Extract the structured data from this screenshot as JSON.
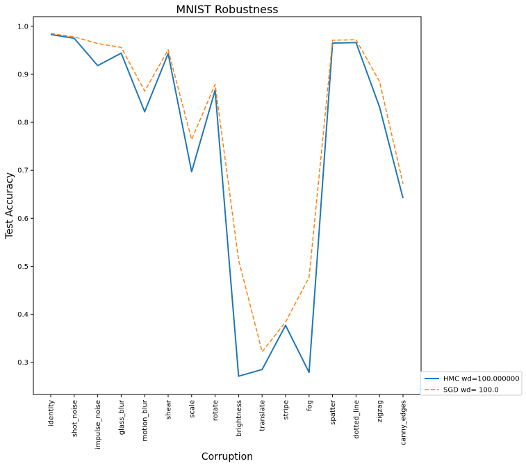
{
  "chart_data": {
    "type": "line",
    "title": "MNIST Robustness",
    "xlabel": "Corruption",
    "ylabel": "Test Accuracy",
    "categories": [
      "identity",
      "shot_noise",
      "impulse_noise",
      "glass_blur",
      "motion_blur",
      "shear",
      "scale",
      "rotate",
      "brightness",
      "translate",
      "stripe",
      "fog",
      "spatter",
      "dotted_line",
      "zigzag",
      "canny_edges"
    ],
    "yticks": [
      "0.3",
      "0.4",
      "0.5",
      "0.6",
      "0.7",
      "0.8",
      "0.9",
      "1.0"
    ],
    "ylim": [
      0.233,
      1.02
    ],
    "grid": false,
    "legend_position": "lower-right outside",
    "series": [
      {
        "name": "HMC wd=100.000000",
        "color": "#1f77b4",
        "style": "solid",
        "values": [
          0.983,
          0.975,
          0.918,
          0.944,
          0.822,
          0.943,
          0.697,
          0.867,
          0.271,
          0.285,
          0.377,
          0.279,
          0.965,
          0.966,
          0.832,
          0.642
        ]
      },
      {
        "name": "SGD wd= 100.0",
        "color": "#ff7f0e",
        "style": "dashed",
        "values": [
          0.985,
          0.978,
          0.964,
          0.956,
          0.865,
          0.951,
          0.764,
          0.879,
          0.513,
          0.322,
          0.384,
          0.477,
          0.971,
          0.972,
          0.885,
          0.672
        ]
      }
    ]
  }
}
